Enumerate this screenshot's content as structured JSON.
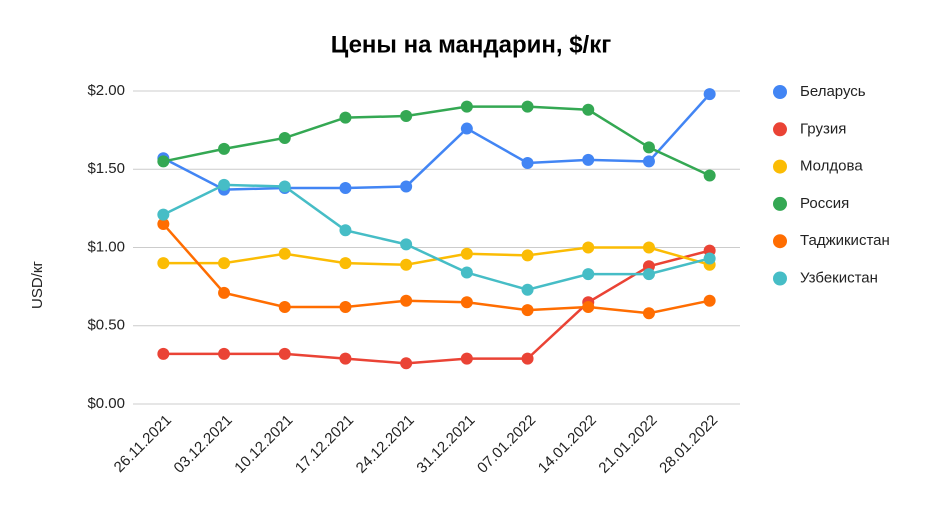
{
  "chart_data": {
    "type": "line",
    "title": "Цены на мандарин, $/кг",
    "ylabel": "USD/кг",
    "categories": [
      "26.11.2021",
      "03.12.2021",
      "10.12.2021",
      "17.12.2021",
      "24.12.2021",
      "31.12.2021",
      "07.01.2022",
      "14.01.2022",
      "21.01.2022",
      "28.01.2022"
    ],
    "series": [
      {
        "name": "Беларусь",
        "color": "#4285f4",
        "values": [
          1.57,
          1.37,
          1.38,
          1.38,
          1.39,
          1.76,
          1.54,
          1.56,
          1.55,
          1.98
        ]
      },
      {
        "name": "Грузия",
        "color": "#ea4335",
        "values": [
          0.32,
          0.32,
          0.32,
          0.29,
          0.26,
          0.29,
          0.29,
          0.65,
          0.88,
          0.98
        ]
      },
      {
        "name": "Молдова",
        "color": "#fbbc04",
        "values": [
          0.9,
          0.9,
          0.96,
          0.9,
          0.89,
          0.96,
          0.95,
          1.0,
          1.0,
          0.89
        ]
      },
      {
        "name": "Россия",
        "color": "#34a853",
        "values": [
          1.55,
          1.63,
          1.7,
          1.83,
          1.84,
          1.9,
          1.9,
          1.88,
          1.64,
          1.46
        ]
      },
      {
        "name": "Таджикистан",
        "color": "#ff6d01",
        "values": [
          1.15,
          0.71,
          0.62,
          0.62,
          0.66,
          0.65,
          0.6,
          0.62,
          0.58,
          0.66
        ]
      },
      {
        "name": "Узбекистан",
        "color": "#46bdc6",
        "values": [
          1.21,
          1.4,
          1.39,
          1.11,
          1.02,
          0.84,
          0.73,
          0.83,
          0.83,
          0.93
        ]
      }
    ],
    "ylim": [
      0,
      2
    ],
    "yticks": [
      {
        "value": 0,
        "label": "$0.00"
      },
      {
        "value": 0.5,
        "label": "$0.50"
      },
      {
        "value": 1,
        "label": "$1.00"
      },
      {
        "value": 1.5,
        "label": "$1.50"
      },
      {
        "value": 2,
        "label": "$2.00"
      }
    ],
    "grid": true,
    "legend": "right"
  }
}
